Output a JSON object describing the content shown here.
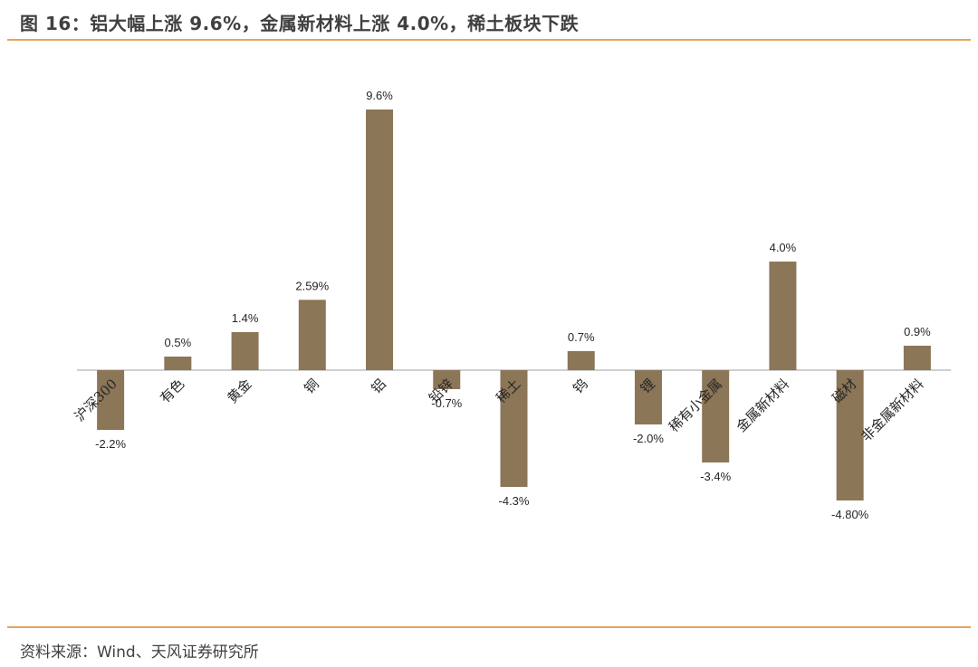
{
  "title": "图 16：铝大幅上涨 9.6%，金属新材料上涨 4.0%，稀土板块下跌",
  "source": "资料来源：Wind、天风证券研究所",
  "colors": {
    "bar": "#8c7658",
    "rule": "#e8a25d",
    "axis": "#bfbfbf"
  },
  "chart_data": {
    "type": "bar",
    "categories": [
      "沪深300",
      "有色",
      "黄金",
      "铜",
      "铝",
      "铅锌",
      "稀土",
      "钨",
      "锂",
      "稀有小金属",
      "金属新材料",
      "磁材",
      "非金属新材料"
    ],
    "values": [
      -2.2,
      0.5,
      1.4,
      2.59,
      9.6,
      -0.7,
      -4.3,
      0.7,
      -2.0,
      -3.4,
      4.0,
      -4.8,
      0.9
    ],
    "data_labels": [
      "-2.2%",
      "0.5%",
      "1.4%",
      "2.59%",
      "9.6%",
      "-0.7%",
      "-4.3%",
      "0.7%",
      "-2.0%",
      "-3.4%",
      "4.0%",
      "-4.80%",
      "0.9%"
    ],
    "ylim": [
      -5.0,
      10.0
    ],
    "grid": false,
    "legend": "none"
  }
}
